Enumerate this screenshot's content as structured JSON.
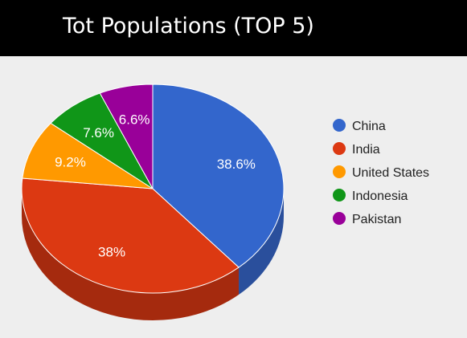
{
  "header": {
    "title": "Tot Populations (TOP 5)"
  },
  "colors": {
    "header_bg": "#000000",
    "header_text": "#ffffff",
    "chart_bg": "#eeeeee"
  },
  "chart_data": {
    "type": "pie",
    "is_3d": true,
    "title": "Tot Populations (TOP 5)",
    "legend_position": "right",
    "slices": [
      {
        "name": "China",
        "percent": 38.6,
        "label": "38.6%",
        "color": "#3366cc",
        "side_color": "#2a4f9c"
      },
      {
        "name": "India",
        "percent": 38.0,
        "label": "38%",
        "color": "#dc3912",
        "side_color": "#a52a0e"
      },
      {
        "name": "United States",
        "percent": 9.2,
        "label": "9.2%",
        "color": "#ff9900",
        "side_color": "#bf7300"
      },
      {
        "name": "Indonesia",
        "percent": 7.6,
        "label": "7.6%",
        "color": "#109618",
        "side_color": "#0c7012"
      },
      {
        "name": "Pakistan",
        "percent": 6.6,
        "label": "6.6%",
        "color": "#990099",
        "side_color": "#730073"
      }
    ]
  }
}
